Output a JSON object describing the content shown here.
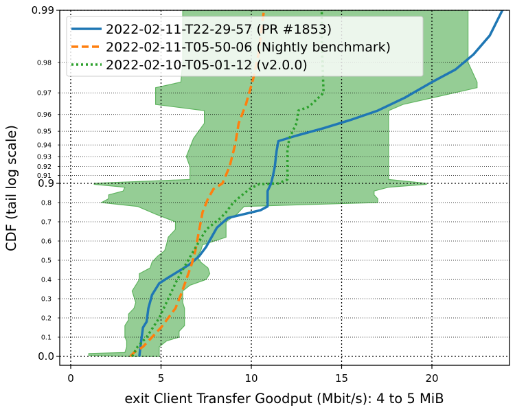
{
  "chart_data": {
    "type": "line",
    "xlabel": "exit Client Transfer Goodput (Mbit/s): 4 to 5 MiB",
    "ylabel": "CDF (tail log scale)",
    "xlim": [
      -0.6,
      24.3
    ],
    "x_ticks": [
      "0",
      "5",
      "10",
      "15",
      "20"
    ],
    "y_major_ticks": [
      "0.0",
      "0.9",
      "0.99"
    ],
    "y_minor_ticks": [
      "0.1",
      "0.2",
      "0.3",
      "0.4",
      "0.5",
      "0.6",
      "0.7",
      "0.8",
      "0.91",
      "0.92",
      "0.93",
      "0.94",
      "0.95",
      "0.96",
      "0.97",
      "0.98"
    ],
    "y_scale": "linear 0–0.9, log tail 0.9–0.99",
    "grid": "dotted",
    "legend_position": "top-left",
    "colors": {
      "pr": "#1f77b4",
      "nightly": "#ff7f0e",
      "release": "#2ca02c",
      "violin_fill": "#93cd93"
    },
    "series": [
      {
        "name": "2022-02-11-T22-29-57 (PR #1853)",
        "style": "solid",
        "color": "#1f77b4",
        "points": [
          [
            3.8,
            0.0
          ],
          [
            3.9,
            0.08
          ],
          [
            4.0,
            0.15
          ],
          [
            4.2,
            0.18
          ],
          [
            4.3,
            0.25
          ],
          [
            4.5,
            0.32
          ],
          [
            4.9,
            0.38
          ],
          [
            5.4,
            0.41
          ],
          [
            6.1,
            0.45
          ],
          [
            6.6,
            0.48
          ],
          [
            7.1,
            0.52
          ],
          [
            7.5,
            0.57
          ],
          [
            7.8,
            0.62
          ],
          [
            8.1,
            0.67
          ],
          [
            8.7,
            0.72
          ],
          [
            9.6,
            0.74
          ],
          [
            10.5,
            0.76
          ],
          [
            10.9,
            0.78
          ],
          [
            10.9,
            0.82
          ],
          [
            10.9,
            0.84
          ],
          [
            10.9,
            0.86
          ],
          [
            11.0,
            0.88
          ],
          [
            11.1,
            0.9
          ],
          [
            11.2,
            0.91
          ],
          [
            11.3,
            0.92
          ],
          [
            11.4,
            0.935
          ],
          [
            11.5,
            0.943
          ],
          [
            12.5,
            0.947
          ],
          [
            14.0,
            0.952
          ],
          [
            15.5,
            0.957
          ],
          [
            17.0,
            0.962
          ],
          [
            18.5,
            0.968
          ],
          [
            20.0,
            0.974
          ],
          [
            21.3,
            0.978
          ],
          [
            22.3,
            0.982
          ],
          [
            23.2,
            0.986
          ],
          [
            23.9,
            0.99
          ]
        ]
      },
      {
        "name": "2022-02-11-T05-50-06 (Nightly benchmark)",
        "style": "dashed",
        "color": "#ff7f0e",
        "points": [
          [
            3.3,
            0.0
          ],
          [
            3.5,
            0.02
          ],
          [
            4.0,
            0.05
          ],
          [
            4.5,
            0.1
          ],
          [
            5.0,
            0.15
          ],
          [
            5.4,
            0.2
          ],
          [
            5.8,
            0.25
          ],
          [
            6.1,
            0.32
          ],
          [
            6.4,
            0.4
          ],
          [
            6.7,
            0.48
          ],
          [
            6.9,
            0.55
          ],
          [
            7.1,
            0.65
          ],
          [
            7.3,
            0.75
          ],
          [
            7.6,
            0.82
          ],
          [
            7.9,
            0.87
          ],
          [
            8.4,
            0.9
          ],
          [
            8.8,
            0.92
          ],
          [
            9.1,
            0.94
          ],
          [
            9.3,
            0.955
          ],
          [
            9.7,
            0.965
          ],
          [
            10.1,
            0.975
          ],
          [
            10.4,
            0.982
          ],
          [
            10.6,
            0.988
          ],
          [
            10.7,
            0.99
          ]
        ]
      },
      {
        "name": "2022-02-10-T05-01-12 (v2.0.0)",
        "style": "dotted",
        "color": "#2ca02c",
        "points": [
          [
            3.4,
            0.0
          ],
          [
            3.7,
            0.05
          ],
          [
            4.2,
            0.1
          ],
          [
            4.9,
            0.2
          ],
          [
            5.4,
            0.3
          ],
          [
            5.9,
            0.4
          ],
          [
            6.5,
            0.5
          ],
          [
            7.0,
            0.58
          ],
          [
            7.5,
            0.66
          ],
          [
            8.3,
            0.72
          ],
          [
            8.6,
            0.75
          ],
          [
            9.0,
            0.8
          ],
          [
            9.5,
            0.84
          ],
          [
            9.9,
            0.87
          ],
          [
            10.4,
            0.895
          ],
          [
            11.5,
            0.9
          ],
          [
            12.0,
            0.905
          ],
          [
            12.0,
            0.935
          ],
          [
            12.1,
            0.945
          ],
          [
            12.5,
            0.955
          ],
          [
            12.6,
            0.962
          ],
          [
            13.2,
            0.964
          ],
          [
            14.0,
            0.97
          ],
          [
            13.9,
            0.985
          ],
          [
            13.9,
            0.99
          ]
        ]
      }
    ]
  }
}
